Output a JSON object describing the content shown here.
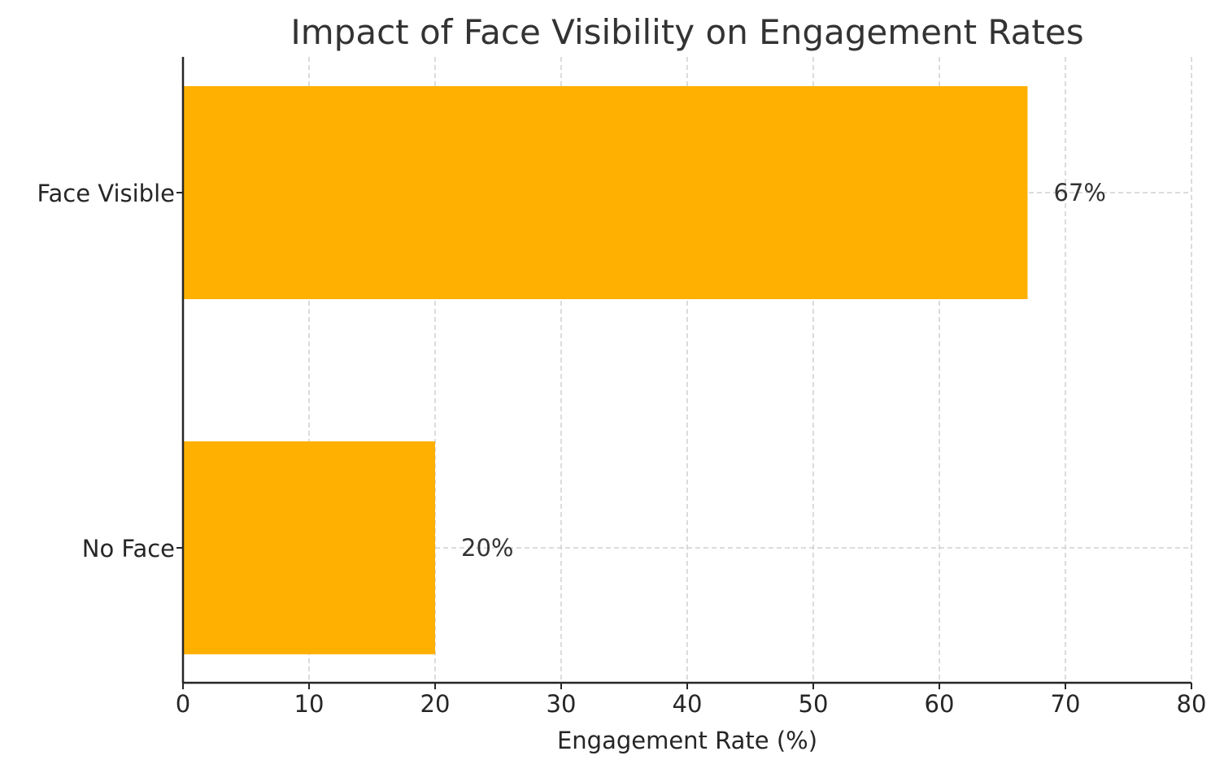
{
  "chart_data": {
    "type": "bar",
    "orientation": "horizontal",
    "title": "Impact of Face Visibility on Engagement Rates",
    "xlabel": "Engagement Rate (%)",
    "ylabel": "",
    "categories": [
      "Face Visible",
      "No Face"
    ],
    "values": [
      67,
      20
    ],
    "data_labels": [
      "67%",
      "20%"
    ],
    "xlim": [
      0,
      80
    ],
    "xticks": [
      0,
      10,
      20,
      30,
      40,
      50,
      60,
      70,
      80
    ],
    "xtick_labels": [
      "0",
      "10",
      "20",
      "30",
      "40",
      "50",
      "60",
      "70",
      "80"
    ],
    "grid": true,
    "bar_color": "#FFB000"
  }
}
